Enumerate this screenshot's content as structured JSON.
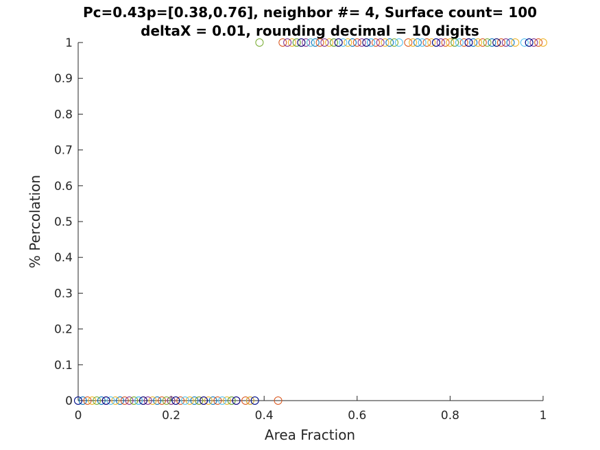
{
  "chart_data": {
    "type": "scatter",
    "title": [
      "Pc=0.43p=[0.38,0.76], neighbor #= 4, Surface count= 100",
      "deltaX = 0.01, rounding decimal = 10 digits"
    ],
    "xlabel": "Area Fraction",
    "ylabel": "% Percolation",
    "xlim": [
      0,
      1
    ],
    "ylim": [
      0,
      1
    ],
    "xticks": [
      0,
      0.2,
      0.4,
      0.6,
      0.8,
      1
    ],
    "xtick_labels": [
      "0",
      "0.2",
      "0.4",
      "0.6",
      "0.8",
      "1"
    ],
    "yticks": [
      0,
      0.1,
      0.2,
      0.3,
      0.4,
      0.5,
      0.6,
      0.7,
      0.8,
      0.9,
      1
    ],
    "ytick_labels": [
      "0",
      "0.1",
      "0.2",
      "0.3",
      "0.4",
      "0.5",
      "0.6",
      "0.7",
      "0.8",
      "0.9",
      "1"
    ],
    "grid": false,
    "marker": "open-circle",
    "series": [
      {
        "color": "#0072BD",
        "x": [
          0.01,
          0.05,
          0.09,
          0.13,
          0.17,
          0.21,
          0.25,
          0.29,
          0.33,
          0.37,
          0.47,
          0.51,
          0.55,
          0.59,
          0.63,
          0.67,
          0.73,
          0.77,
          0.81,
          0.85,
          0.89,
          0.93,
          0.97
        ],
        "y": [
          0,
          0,
          0,
          0,
          0,
          0,
          0,
          0,
          0,
          0,
          1,
          1,
          1,
          1,
          1,
          1,
          1,
          1,
          1,
          1,
          1,
          1,
          1
        ]
      },
      {
        "color": "#D95319",
        "x": [
          0.02,
          0.06,
          0.1,
          0.14,
          0.18,
          0.22,
          0.26,
          0.3,
          0.36,
          0.43,
          0.44,
          0.48,
          0.52,
          0.56,
          0.6,
          0.64,
          0.71,
          0.75,
          0.79,
          0.83,
          0.87,
          0.91,
          0.99
        ],
        "y": [
          0,
          0,
          0,
          0,
          0,
          0,
          0,
          0,
          0,
          0,
          1,
          1,
          1,
          1,
          1,
          1,
          1,
          1,
          1,
          1,
          1,
          1,
          1
        ]
      },
      {
        "color": "#EDB120",
        "x": [
          0.03,
          0.08,
          0.12,
          0.16,
          0.2,
          0.24,
          0.28,
          0.32,
          0.37,
          0.46,
          0.5,
          0.54,
          0.58,
          0.62,
          0.66,
          0.72,
          0.76,
          0.8,
          0.86,
          0.9,
          0.94,
          1.0
        ],
        "y": [
          0,
          0,
          0,
          0,
          0,
          0,
          0,
          0,
          0,
          1,
          1,
          1,
          1,
          1,
          1,
          1,
          1,
          1,
          1,
          1,
          1,
          1
        ]
      },
      {
        "color": "#7E2F8E",
        "x": [
          0.06,
          0.11,
          0.15,
          0.2,
          0.27,
          0.34,
          0.45,
          0.49,
          0.53,
          0.61,
          0.65,
          0.78,
          0.84,
          0.92,
          0.98
        ],
        "y": [
          0,
          0,
          0,
          0,
          0,
          0,
          1,
          1,
          1,
          1,
          1,
          1,
          1,
          1,
          1
        ]
      },
      {
        "color": "#77AC30",
        "x": [
          0.04,
          0.12,
          0.19,
          0.26,
          0.33,
          0.39,
          0.47,
          0.55,
          0.68,
          0.81,
          0.88
        ],
        "y": [
          0,
          0,
          0,
          0,
          0,
          1,
          1,
          1,
          1,
          1,
          1
        ]
      },
      {
        "color": "#4DBEEE",
        "x": [
          0.0,
          0.07,
          0.13,
          0.23,
          0.31,
          0.38,
          0.5,
          0.57,
          0.63,
          0.69,
          0.74,
          0.82,
          0.96
        ],
        "y": [
          0,
          0,
          0,
          0,
          0,
          0,
          1,
          1,
          1,
          1,
          1,
          1,
          1
        ]
      },
      {
        "color": "#000080",
        "x": [
          0.0,
          0.06,
          0.14,
          0.21,
          0.27,
          0.34,
          0.38,
          0.48,
          0.56,
          0.62,
          0.77,
          0.84,
          0.9,
          0.97
        ],
        "y": [
          0,
          0,
          0,
          0,
          0,
          0,
          0,
          1,
          1,
          1,
          1,
          1,
          1,
          1
        ]
      }
    ]
  }
}
